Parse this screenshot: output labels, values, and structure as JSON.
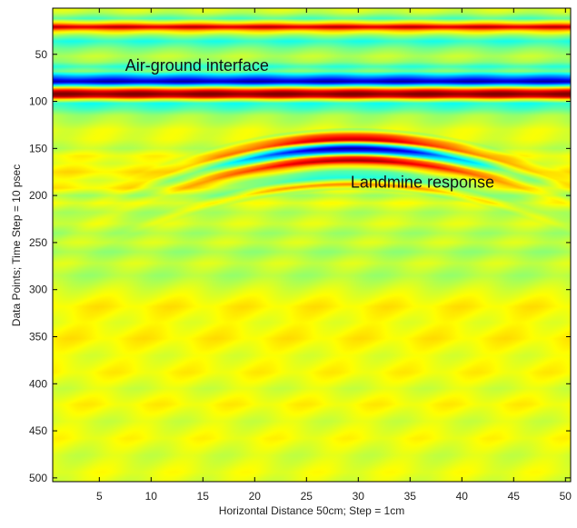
{
  "chart_data": {
    "type": "heatmap",
    "title": "",
    "xlabel": "Horizontal Distance 50cm; Step = 1cm",
    "ylabel": "Data Points; Time Step = 10 psec",
    "xlim": [
      0.5,
      50.5
    ],
    "ylim": [
      504,
      1
    ],
    "y_reversed": true,
    "grid": false,
    "colormap": "jet",
    "color_range": [
      -1,
      1
    ],
    "x_ticks": [
      5,
      10,
      15,
      20,
      25,
      30,
      35,
      40,
      45,
      50
    ],
    "y_ticks": [
      50,
      100,
      150,
      200,
      250,
      300,
      350,
      400,
      450,
      500
    ],
    "x_tick_labels": [
      "5",
      "10",
      "15",
      "20",
      "25",
      "30",
      "35",
      "40",
      "45",
      "50"
    ],
    "y_tick_labels": [
      "50",
      "100",
      "150",
      "200",
      "250",
      "300",
      "350",
      "400",
      "450",
      "500"
    ],
    "background_bands": [
      {
        "y": 1,
        "v": 0.2
      },
      {
        "y": 6,
        "v": 0.12
      },
      {
        "y": 12,
        "v": -0.1
      },
      {
        "y": 17,
        "v": 0.35
      },
      {
        "y": 21,
        "v": 0.9
      },
      {
        "y": 25,
        "v": 0.35
      },
      {
        "y": 30,
        "v": 0.05
      },
      {
        "y": 36,
        "v": -0.18
      },
      {
        "y": 44,
        "v": 0.0
      },
      {
        "y": 52,
        "v": 0.12
      },
      {
        "y": 58,
        "v": 0.05
      },
      {
        "y": 63,
        "v": -0.15
      },
      {
        "y": 68,
        "v": 0.0
      },
      {
        "y": 72,
        "v": -0.35
      },
      {
        "y": 76,
        "v": -0.65
      },
      {
        "y": 79,
        "v": -0.95
      },
      {
        "y": 82,
        "v": -0.45
      },
      {
        "y": 86,
        "v": 0.35
      },
      {
        "y": 89,
        "v": 0.8
      },
      {
        "y": 92,
        "v": 1.0
      },
      {
        "y": 95,
        "v": 0.85
      },
      {
        "y": 98,
        "v": 0.25
      },
      {
        "y": 102,
        "v": -0.2
      },
      {
        "y": 108,
        "v": -0.1
      },
      {
        "y": 115,
        "v": 0.08
      },
      {
        "y": 122,
        "v": 0.12
      },
      {
        "y": 130,
        "v": 0.2
      },
      {
        "y": 140,
        "v": 0.2
      },
      {
        "y": 150,
        "v": 0.12
      },
      {
        "y": 158,
        "v": 0.25
      },
      {
        "y": 166,
        "v": 0.2
      },
      {
        "y": 175,
        "v": 0.3
      },
      {
        "y": 184,
        "v": 0.2
      },
      {
        "y": 192,
        "v": 0.28
      },
      {
        "y": 200,
        "v": 0.08
      },
      {
        "y": 208,
        "v": 0.22
      },
      {
        "y": 218,
        "v": 0.1
      },
      {
        "y": 230,
        "v": 0.18
      },
      {
        "y": 240,
        "v": 0.08
      },
      {
        "y": 250,
        "v": 0.16
      },
      {
        "y": 260,
        "v": 0.06
      },
      {
        "y": 272,
        "v": 0.16
      },
      {
        "y": 285,
        "v": 0.08
      },
      {
        "y": 300,
        "v": 0.18
      },
      {
        "y": 318,
        "v": 0.28
      },
      {
        "y": 335,
        "v": 0.22
      },
      {
        "y": 352,
        "v": 0.28
      },
      {
        "y": 370,
        "v": 0.2
      },
      {
        "y": 388,
        "v": 0.26
      },
      {
        "y": 405,
        "v": 0.17
      },
      {
        "y": 422,
        "v": 0.26
      },
      {
        "y": 440,
        "v": 0.17
      },
      {
        "y": 458,
        "v": 0.24
      },
      {
        "y": 476,
        "v": 0.16
      },
      {
        "y": 494,
        "v": 0.22
      },
      {
        "y": 504,
        "v": 0.18
      }
    ],
    "landmine_hyperbola": {
      "apex_x": 29.5,
      "apex_y": 150,
      "curvature": 0.11,
      "width": 9,
      "bands": [
        {
          "dy": -22,
          "v": -0.25
        },
        {
          "dy": -15,
          "v": 0.55
        },
        {
          "dy": -9,
          "v": 0.85
        },
        {
          "dy": -4,
          "v": -0.35
        },
        {
          "dy": 0,
          "v": -1.0
        },
        {
          "dy": 4,
          "v": -0.55
        },
        {
          "dy": 9,
          "v": 0.6
        },
        {
          "dy": 13,
          "v": 0.9
        },
        {
          "dy": 17,
          "v": 0.35
        },
        {
          "dy": 24,
          "v": -0.15
        },
        {
          "dy": 31,
          "v": -0.25
        },
        {
          "dy": 38,
          "v": 0.45
        },
        {
          "dy": 45,
          "v": -0.15
        }
      ]
    },
    "annotations": [
      {
        "text": "Air-ground interface",
        "x": 7.5,
        "y": 62
      },
      {
        "text": "Landmine response",
        "x": 19.0,
        "y": 182
      }
    ]
  }
}
